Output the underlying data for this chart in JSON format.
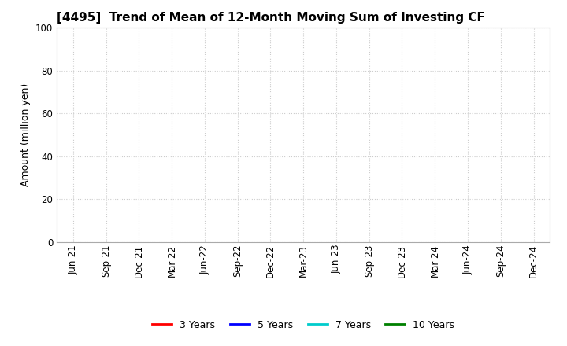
{
  "title": "[4495]  Trend of Mean of 12-Month Moving Sum of Investing CF",
  "ylabel": "Amount (million yen)",
  "ylim": [
    0,
    100
  ],
  "yticks": [
    0,
    20,
    40,
    60,
    80,
    100
  ],
  "x_labels": [
    "Jun-21",
    "Sep-21",
    "Dec-21",
    "Mar-22",
    "Jun-22",
    "Sep-22",
    "Dec-22",
    "Mar-23",
    "Jun-23",
    "Sep-23",
    "Dec-23",
    "Mar-24",
    "Jun-24",
    "Sep-24",
    "Dec-24"
  ],
  "background_color": "#ffffff",
  "grid_color": "#cccccc",
  "legend_entries": [
    {
      "label": "3 Years",
      "color": "#ff0000"
    },
    {
      "label": "5 Years",
      "color": "#0000ff"
    },
    {
      "label": "7 Years",
      "color": "#00cccc"
    },
    {
      "label": "10 Years",
      "color": "#008000"
    }
  ],
  "title_fontsize": 11,
  "axis_label_fontsize": 9,
  "tick_fontsize": 8.5
}
